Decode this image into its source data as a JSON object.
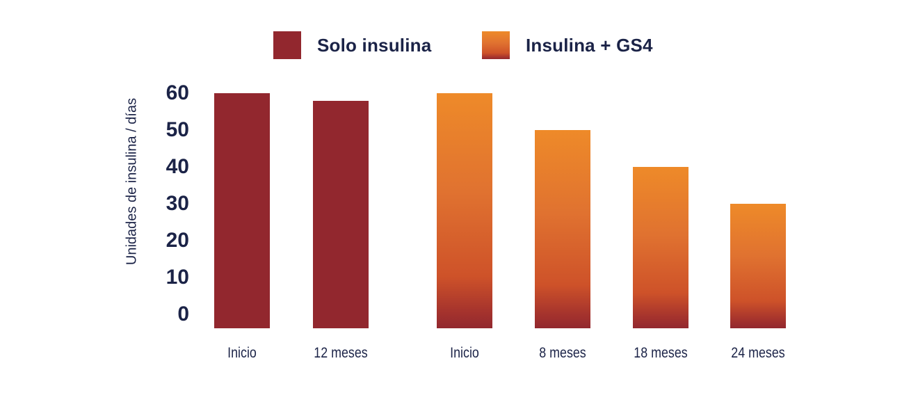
{
  "colors": {
    "background": "#FFFFFF",
    "text": "#1B2347",
    "solo_insulina_red": "#92272E",
    "orange_gradient_stops": [
      "#EE8A29 0%",
      "#E07230 42%",
      "#CE5229 78%",
      "#A5332D 93%",
      "#92282E 100%"
    ]
  },
  "legend": {
    "items": [
      {
        "label": "Solo insulina",
        "swatch": "solid-red"
      },
      {
        "label": "Insulina + GS4",
        "swatch": "orange-gradient"
      }
    ]
  },
  "chart_data": {
    "type": "bar",
    "title": "",
    "xlabel": "",
    "ylabel": "Unidades de insulina / días",
    "ylim": [
      0,
      60
    ],
    "yticks": [
      60,
      50,
      40,
      30,
      20,
      10,
      0
    ],
    "grid": false,
    "axis_lines": false,
    "legend_position": "top-center",
    "series": [
      {
        "name": "Solo insulina",
        "style": "solid-red",
        "categories": [
          "Inicio",
          "12 meses"
        ],
        "values": [
          60,
          58
        ]
      },
      {
        "name": "Insulina + GS4",
        "style": "orange-gradient",
        "categories": [
          "Inicio",
          "8 meses",
          "18 meses",
          "24 meses"
        ],
        "values": [
          60,
          50,
          40,
          30
        ]
      }
    ]
  }
}
